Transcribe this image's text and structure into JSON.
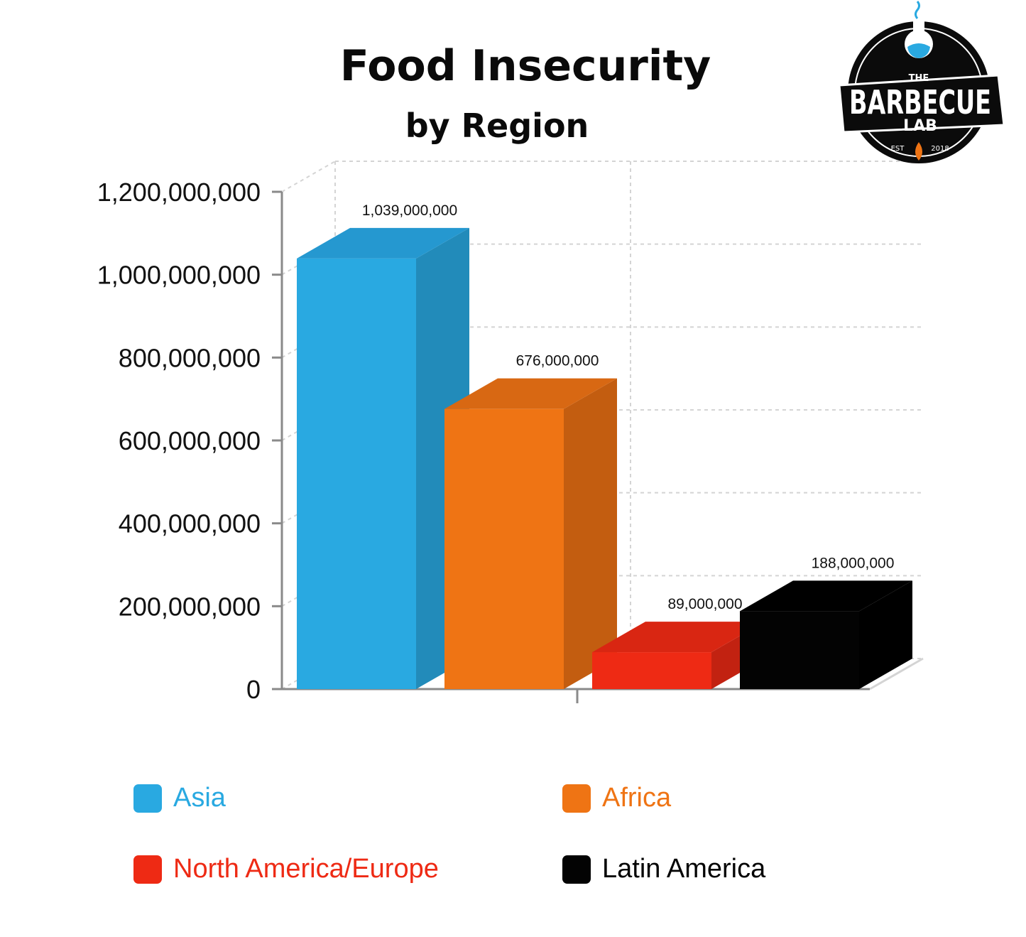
{
  "chart_data": {
    "type": "bar",
    "title": "Food Insecurity",
    "subtitle": "by Region",
    "categories": [
      "Asia",
      "Africa",
      "North America/Europe",
      "Latin America"
    ],
    "values": [
      1039000000,
      676000000,
      89000000,
      188000000
    ],
    "value_labels": [
      "1,039,000,000",
      "676,000,000",
      "89,000,000",
      "188,000,000"
    ],
    "yticks": [
      0,
      200000000,
      400000000,
      600000000,
      800000000,
      1000000000,
      1200000000
    ],
    "ytick_labels": [
      "0",
      "200,000,000",
      "400,000,000",
      "600,000,000",
      "800,000,000",
      "1,000,000,000",
      "1,200,000,000"
    ],
    "ylim": [
      0,
      1200000000
    ],
    "grid": true,
    "style": "3d-bar",
    "legend_position": "bottom",
    "colors": {
      "Asia": {
        "front": "#29a9e1",
        "side": "#228bba",
        "top": "#2598d0"
      },
      "Africa": {
        "front": "#ef7414",
        "side": "#c35d10",
        "top": "#d86813"
      },
      "North America/Europe": {
        "front": "#ee2a14",
        "side": "#c22211",
        "top": "#d92612"
      },
      "Latin America": {
        "front": "#030303",
        "side": "#000000",
        "top": "#000000"
      }
    }
  },
  "legend": [
    {
      "label": "Asia",
      "color": "#29a9e1"
    },
    {
      "label": "Africa",
      "color": "#ef7414"
    },
    {
      "label": "North America/Europe",
      "color": "#ee2a14"
    },
    {
      "label": "Latin America",
      "color": "#030303"
    }
  ],
  "logo": {
    "text_top": "THE",
    "text_main": "BARBECUE",
    "text_sub": "LAB",
    "est_left": "EST",
    "est_right": "2018"
  }
}
